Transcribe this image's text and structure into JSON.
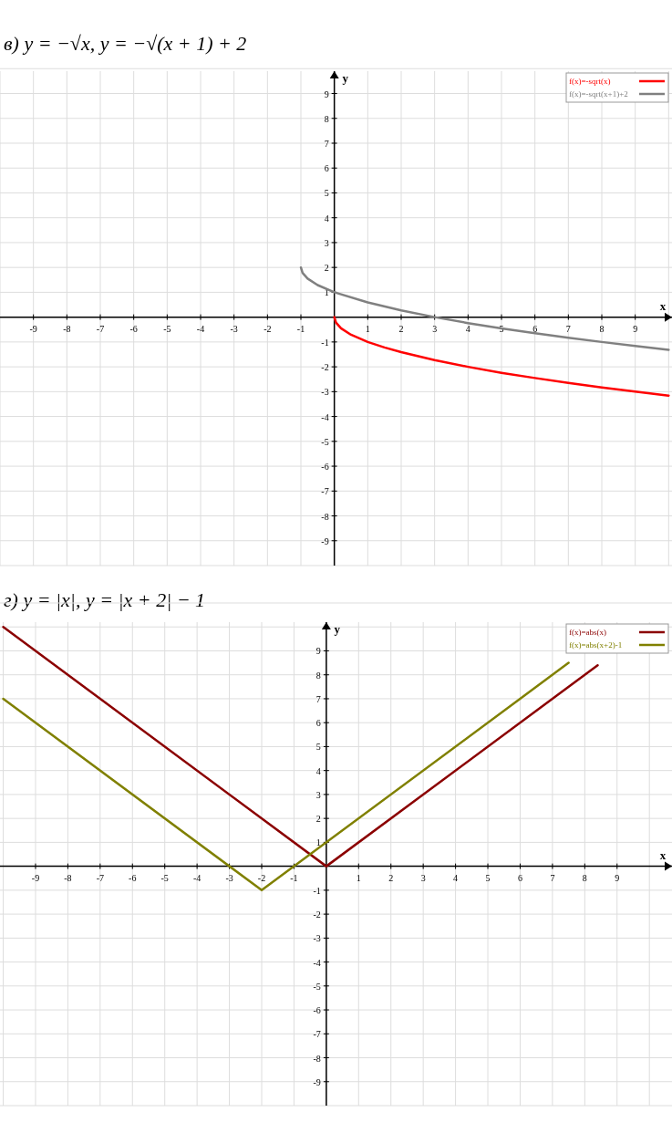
{
  "chart_data": [
    {
      "type": "line",
      "title": "в) y = −√x,      y = −√(x + 1) + 2",
      "xlabel": "x",
      "ylabel": "y",
      "xlim": [
        -10,
        10.1
      ],
      "ylim": [
        -10,
        9.9
      ],
      "xticks": [
        -9,
        -8,
        -7,
        -6,
        -5,
        -4,
        -3,
        -2,
        -1,
        1,
        2,
        3,
        4,
        5,
        6,
        7,
        8,
        9
      ],
      "yticks": [
        -9,
        -8,
        -7,
        -6,
        -5,
        -4,
        -3,
        -2,
        -1,
        1,
        2,
        3,
        4,
        5,
        6,
        7,
        8,
        9
      ],
      "grid": true,
      "legend": "top right",
      "marker": "none",
      "line_style": "solid",
      "series": [
        {
          "name": "f(x)=-sqrt(x)",
          "color": "#ff0000",
          "x": [
            0,
            0.05,
            0.2,
            0.5,
            1,
            1.5,
            2,
            3,
            4,
            5,
            6,
            7,
            8,
            9,
            10
          ],
          "values": [
            0,
            -0.22,
            -0.45,
            -0.71,
            -1,
            -1.22,
            -1.41,
            -1.73,
            -2,
            -2.24,
            -2.45,
            -2.65,
            -2.83,
            -3,
            -3.16
          ]
        },
        {
          "name": "f(x)=-sqrt(x+1)+2",
          "color": "#808080",
          "x": [
            -1,
            -0.95,
            -0.8,
            -0.5,
            0,
            1,
            2,
            3,
            4,
            5,
            6,
            7,
            8,
            9,
            10
          ],
          "values": [
            2,
            1.78,
            1.55,
            1.29,
            1,
            0.59,
            0.27,
            0,
            -0.24,
            -0.45,
            -0.65,
            -0.83,
            -1,
            -1.16,
            -1.32
          ]
        }
      ]
    },
    {
      "type": "line",
      "title": "г) y = |x|,      y = |x + 2| − 1",
      "xlabel": "x",
      "ylabel": "y",
      "xlim": [
        -10.1,
        10.7
      ],
      "ylim": [
        -10,
        10.2
      ],
      "xticks": [
        -9,
        -8,
        -7,
        -6,
        -5,
        -4,
        -3,
        -2,
        -1,
        1,
        2,
        3,
        4,
        5,
        6,
        7,
        8,
        9
      ],
      "yticks": [
        -9,
        -8,
        -7,
        -6,
        -5,
        -4,
        -3,
        -2,
        -1,
        1,
        2,
        3,
        4,
        5,
        6,
        7,
        8,
        9
      ],
      "grid": true,
      "legend": "top right",
      "marker": "none",
      "line_style": "solid",
      "series": [
        {
          "name": "f(x)=abs(x)",
          "color": "#8b0000",
          "x": [
            -10,
            0,
            8.4
          ],
          "values": [
            10,
            0,
            8.4
          ]
        },
        {
          "name": "f(x)=abs(x+2)-1",
          "color": "#808000",
          "x": [
            -10,
            -2,
            7.5
          ],
          "values": [
            7,
            -1,
            8.5
          ]
        }
      ]
    }
  ]
}
